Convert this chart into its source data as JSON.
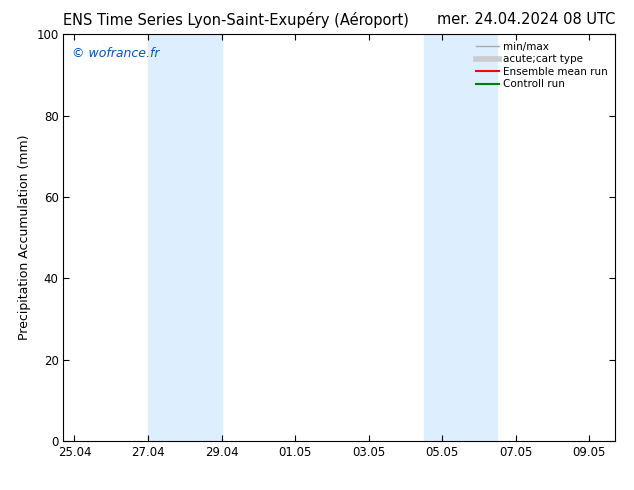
{
  "title_left": "ENS Time Series Lyon-Saint-Exupéry (Aéroport)",
  "title_right": "mer. 24.04.2024 08 UTC",
  "ylabel": "Precipitation Accumulation (mm)",
  "ylim": [
    0,
    100
  ],
  "yticks": [
    0,
    20,
    40,
    60,
    80,
    100
  ],
  "xtick_labels": [
    "25.04",
    "27.04",
    "29.04",
    "01.05",
    "03.05",
    "05.05",
    "07.05",
    "09.05"
  ],
  "xtick_positions": [
    0,
    2,
    4,
    6,
    8,
    10,
    12,
    14
  ],
  "x_min": -0.3,
  "x_max": 14.7,
  "shaded_bands": [
    {
      "x_start": 2.0,
      "x_end": 4.0
    },
    {
      "x_start": 9.5,
      "x_end": 11.5
    }
  ],
  "shaded_color": "#ddeeff",
  "background_color": "#ffffff",
  "watermark_text": "© wofrance.fr",
  "watermark_color": "#0055cc",
  "legend_items": [
    {
      "label": "min/max",
      "color": "#aaaaaa",
      "lw": 1.0
    },
    {
      "label": "acute;cart type",
      "color": "#cccccc",
      "lw": 4.0
    },
    {
      "label": "Ensemble mean run",
      "color": "#ff0000",
      "lw": 1.5
    },
    {
      "label": "Controll run",
      "color": "#008000",
      "lw": 1.5
    }
  ],
  "title_fontsize": 10.5,
  "ylabel_fontsize": 9,
  "tick_fontsize": 8.5,
  "legend_fontsize": 7.5,
  "watermark_fontsize": 9
}
